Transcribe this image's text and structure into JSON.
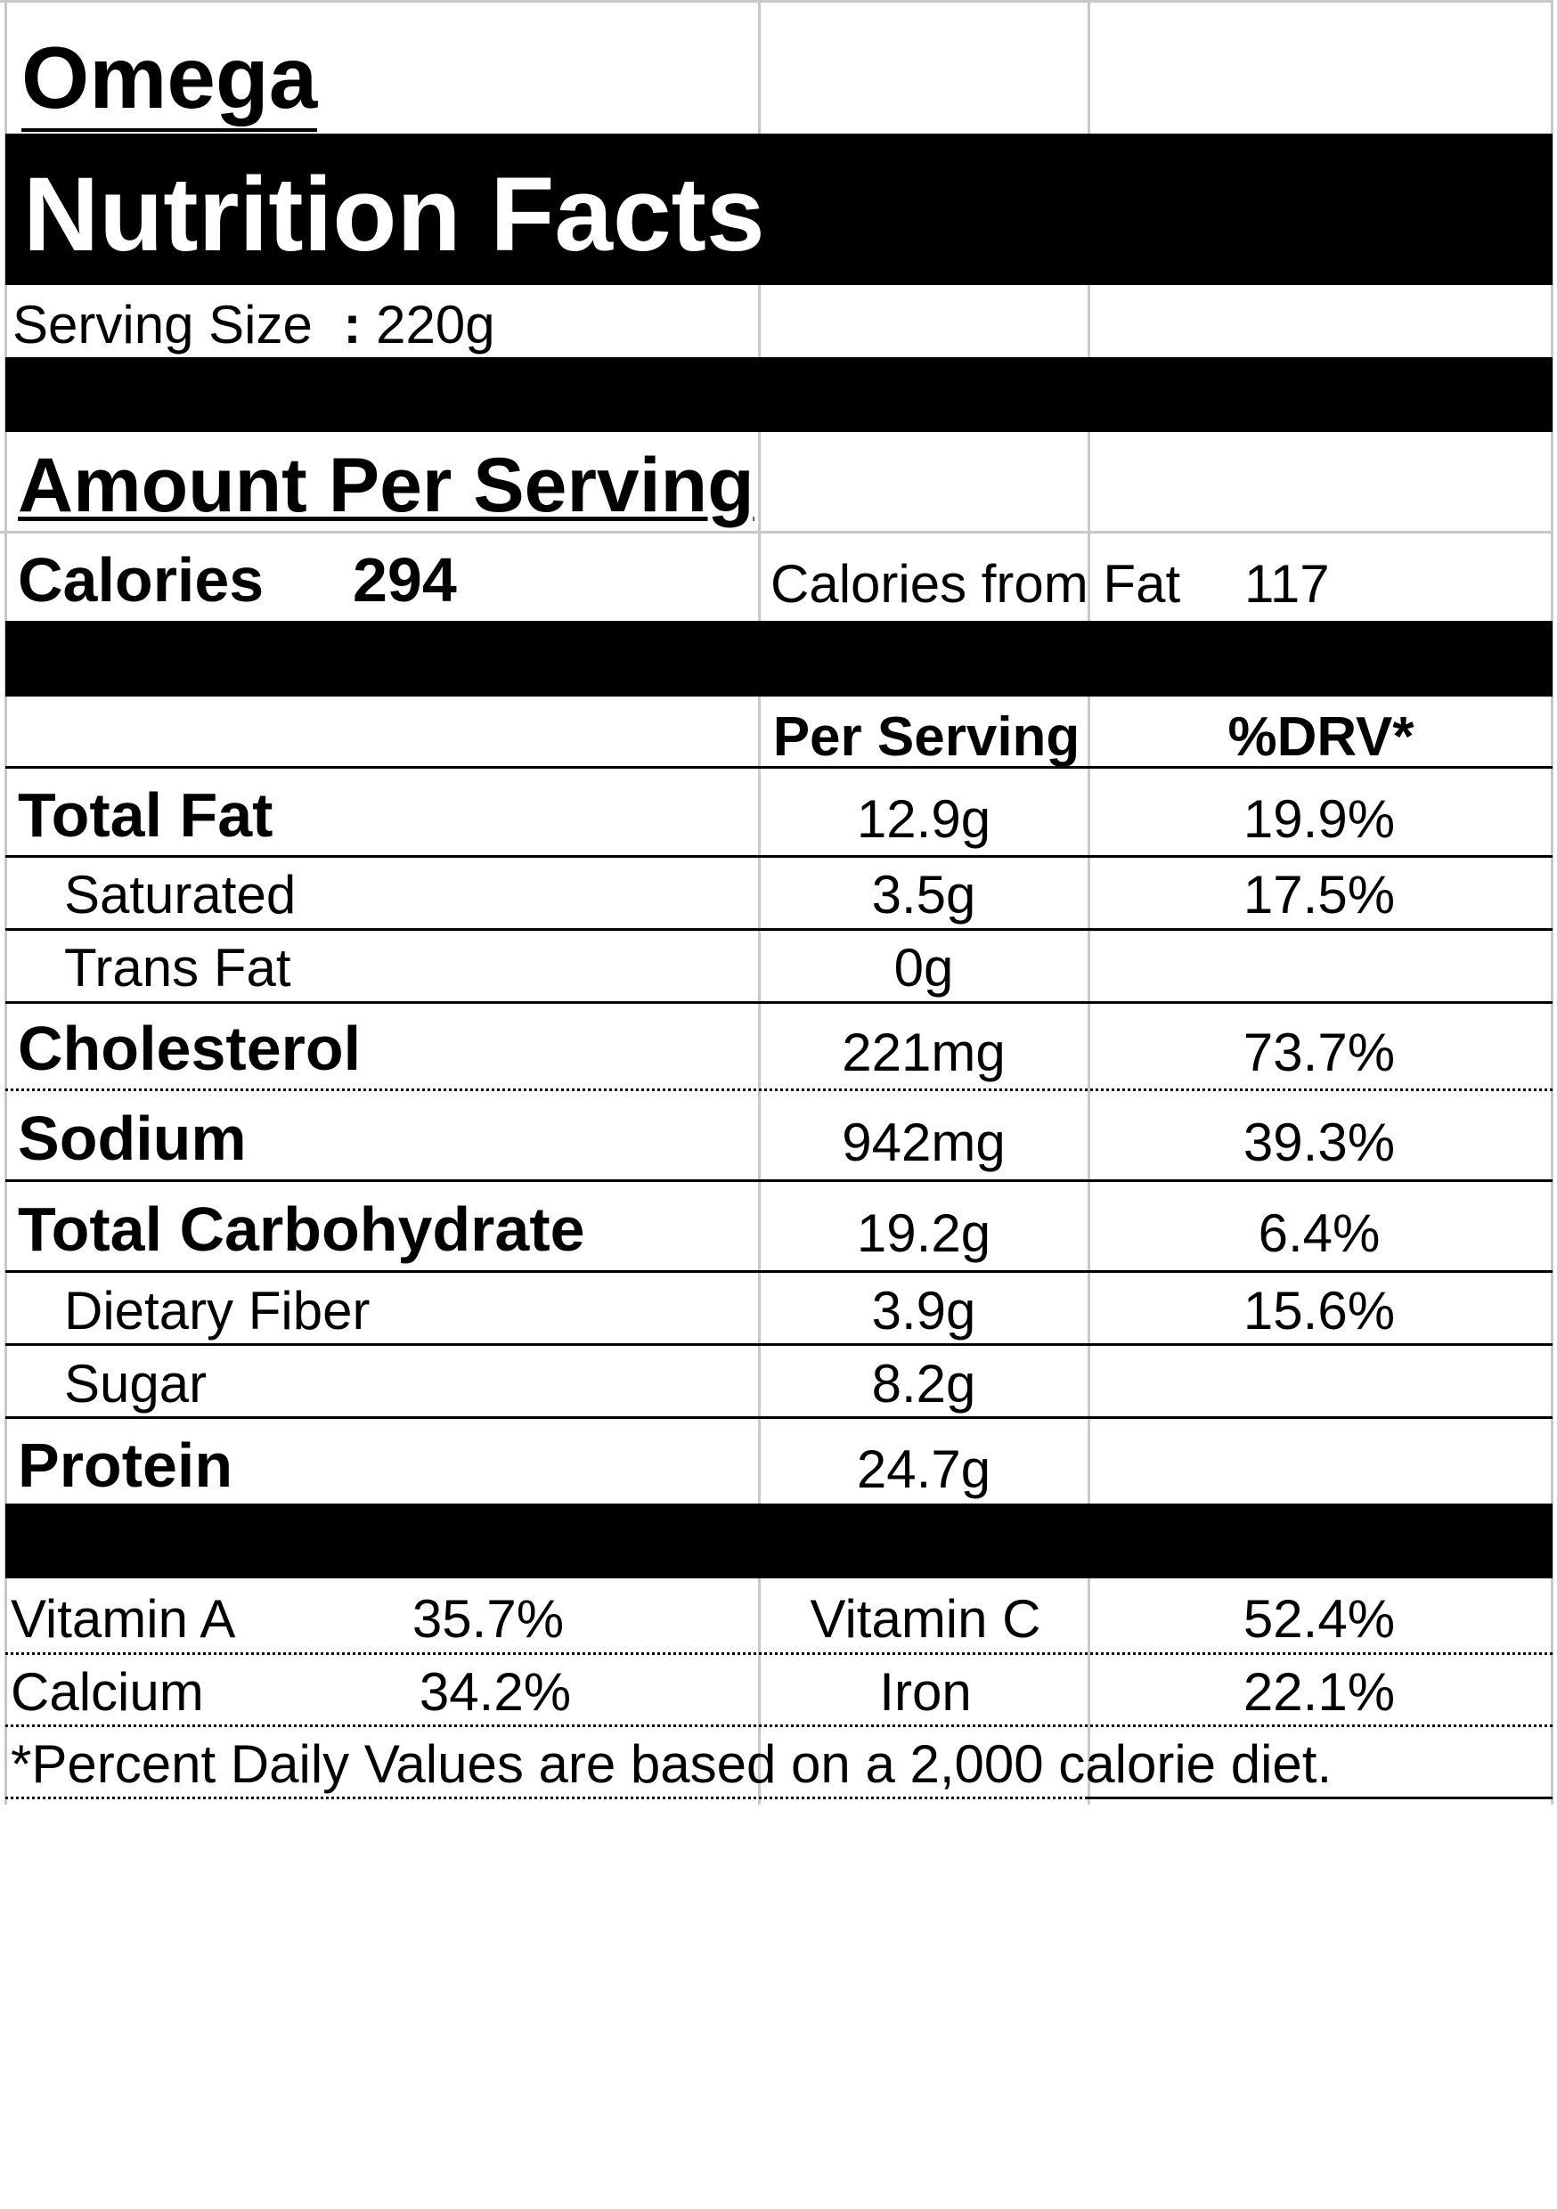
{
  "brand": "Omega",
  "title": "Nutrition Facts",
  "serving_size": {
    "label": "Serving Size",
    "separator": ":",
    "value": "220g"
  },
  "amount_per_serving": "Amount Per Serving",
  "calories": {
    "label": "Calories",
    "value": "294",
    "from_fat_label": "Calories from Fat",
    "from_fat_value": "117"
  },
  "columns": {
    "per_serving": "Per Serving",
    "drv": "%DRV*"
  },
  "nutrients": [
    {
      "label": "Total Fat",
      "amount": "12.9g",
      "drv": "19.9%"
    },
    {
      "label": "Saturated",
      "amount": "3.5g",
      "drv": "17.5%"
    },
    {
      "label": "Trans Fat",
      "amount": "0g",
      "drv": ""
    },
    {
      "label": "Cholesterol",
      "amount": "221mg",
      "drv": "73.7%"
    },
    {
      "label": "Sodium",
      "amount": "942mg",
      "drv": "39.3%"
    },
    {
      "label": "Total Carbohydrate",
      "amount": "19.2g",
      "drv": "6.4%"
    },
    {
      "label": "Dietary Fiber",
      "amount": "3.9g",
      "drv": "15.6%"
    },
    {
      "label": "Sugar",
      "amount": "8.2g",
      "drv": ""
    },
    {
      "label": "Protein",
      "amount": "24.7g",
      "drv": ""
    }
  ],
  "vitamins": [
    {
      "label_left": "Vitamin A",
      "value_left": "35.7%",
      "label_right": "Vitamin C",
      "value_right": "52.4%"
    },
    {
      "label_left": "Calcium",
      "value_left": "34.2%",
      "label_right": "Iron",
      "value_right": "22.1%"
    }
  ],
  "footnote": "*Percent Daily Values are based on a 2,000 calorie diet."
}
